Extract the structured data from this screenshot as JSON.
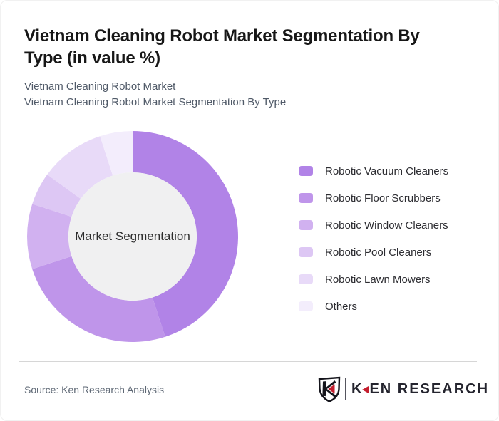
{
  "header": {
    "title_lines": [
      "Vietnam Cleaning Robot Market Segmentation By",
      "Type (in value %)"
    ],
    "subtitle_lines": [
      "Vietnam Cleaning Robot Market",
      "Vietnam Cleaning Robot Market Segmentation By Type"
    ]
  },
  "chart_data": {
    "type": "pie",
    "subtype": "donut",
    "title": "Vietnam Cleaning Robot Market Segmentation By Type (in value %)",
    "labels": [
      "Robotic Vacuum Cleaners",
      "Robotic Floor Scrubbers",
      "Robotic Window Cleaners",
      "Robotic Pool Cleaners",
      "Robotic Lawn Mowers",
      "Others"
    ],
    "values": [
      45,
      25,
      10,
      5,
      10,
      5
    ],
    "unit": "percent of market value",
    "colors": [
      "#b183e7",
      "#bf95ea",
      "#d1b1f0",
      "#ddc7f4",
      "#e8daf8",
      "#f3edfc"
    ],
    "center_label": "Market Segmentation",
    "hole_fill": "#f0f0f1",
    "start_angle_deg": 0,
    "clockwise": true,
    "legend_position": "right"
  },
  "footer": {
    "source": "Source: Ken Research Analysis",
    "logo": {
      "text_k": "K",
      "text_rest": "EN RESEARCH",
      "accent_color": "#c41e2e"
    }
  }
}
